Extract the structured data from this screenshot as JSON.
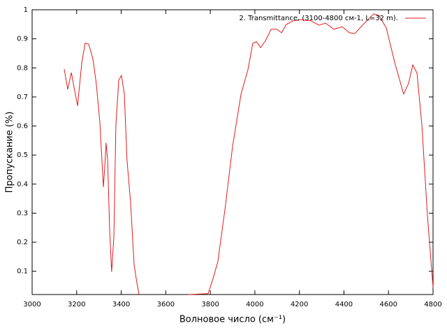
{
  "chart_data": {
    "type": "line",
    "xlabel": "Волновое число (см⁻¹)",
    "ylabel": "Пропускание (%)",
    "x": [
      3144,
      3160,
      3176,
      3188,
      3204,
      3223,
      3238,
      3254,
      3273,
      3288,
      3304,
      3320,
      3326,
      3332,
      3339,
      3348,
      3357,
      3367,
      3376,
      3389,
      3401,
      3414,
      3426,
      3442,
      3458,
      3470,
      3480,
      3600,
      3702,
      3790,
      3812,
      3834,
      3866,
      3900,
      3938,
      3969,
      3991,
      4007,
      4026,
      4048,
      4073,
      4098,
      4120,
      4142,
      4173,
      4204,
      4251,
      4289,
      4317,
      4355,
      4392,
      4424,
      4449,
      4487,
      4534,
      4556,
      4590,
      4628,
      4668,
      4690,
      4709,
      4728,
      4750,
      4775,
      4800
    ],
    "series": [
      {
        "name": "2. Transmittance, (3100-4800 см-1, L=32 m).",
        "color": "#e41a1c",
        "values": [
          0.796,
          0.726,
          0.784,
          0.734,
          0.669,
          0.818,
          0.885,
          0.882,
          0.83,
          0.746,
          0.614,
          0.39,
          0.458,
          0.542,
          0.482,
          0.242,
          0.098,
          0.218,
          0.602,
          0.758,
          0.774,
          0.71,
          0.482,
          0.338,
          0.122,
          0.062,
          0.02,
          null,
          0.02,
          0.023,
          0.074,
          0.134,
          0.314,
          0.53,
          0.71,
          0.794,
          0.885,
          0.89,
          0.87,
          0.894,
          0.933,
          0.933,
          0.921,
          0.95,
          0.962,
          0.966,
          0.962,
          0.947,
          0.954,
          0.933,
          0.942,
          0.921,
          0.918,
          0.95,
          0.986,
          0.981,
          0.938,
          0.818,
          0.71,
          0.746,
          0.81,
          0.782,
          0.602,
          0.29,
          0.045
        ]
      }
    ],
    "xlim": [
      3000,
      4800
    ],
    "xticks": [
      3000,
      3200,
      3400,
      3600,
      3800,
      4000,
      4200,
      4400,
      4600,
      4800
    ],
    "ylim": [
      0.02,
      1
    ],
    "yticks": [
      0.1,
      0.2,
      0.3,
      0.4,
      0.5,
      0.6,
      0.7,
      0.8,
      0.9,
      1
    ],
    "legend": "top-right"
  }
}
